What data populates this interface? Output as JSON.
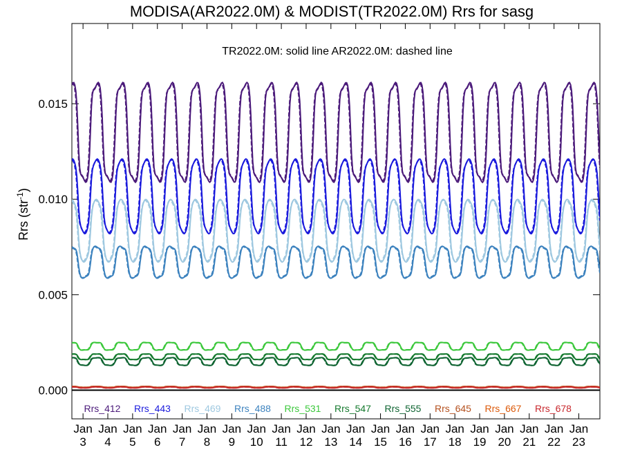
{
  "chart_data": {
    "type": "line",
    "title": "MODISA(AR2022.0M) & MODIST(TR2022.0M)  Rrs for sasg",
    "subtitle": "TR2022.0M: solid line   AR2022.0M: dashed line",
    "ylabel": "Rrs (str",
    "ylabel_sup": "-1",
    "ylabel_close": ")",
    "ylim": [
      -0.0015,
      0.0192
    ],
    "yticks": [
      0.0,
      0.005,
      0.01,
      0.015
    ],
    "ytick_labels": [
      "0.000",
      "0.005",
      "0.010",
      "0.015"
    ],
    "x_range_days": [
      2.55,
      23.85
    ],
    "xtick_labels": [
      {
        "day": 3,
        "month": "Jan",
        "num": "3"
      },
      {
        "day": 4,
        "month": "Jan",
        "num": "4"
      },
      {
        "day": 5,
        "month": "Jan",
        "num": "5"
      },
      {
        "day": 6,
        "month": "Jan",
        "num": "6"
      },
      {
        "day": 7,
        "month": "Jan",
        "num": "7"
      },
      {
        "day": 8,
        "month": "Jan",
        "num": "8"
      },
      {
        "day": 9,
        "month": "Jan",
        "num": "9"
      },
      {
        "day": 10,
        "month": "Jan",
        "num": "10"
      },
      {
        "day": 11,
        "month": "Jan",
        "num": "11"
      },
      {
        "day": 12,
        "month": "Jan",
        "num": "12"
      },
      {
        "day": 13,
        "month": "Jan",
        "num": "13"
      },
      {
        "day": 14,
        "month": "Jan",
        "num": "14"
      },
      {
        "day": 15,
        "month": "Jan",
        "num": "15"
      },
      {
        "day": 16,
        "month": "Jan",
        "num": "16"
      },
      {
        "day": 17,
        "month": "Jan",
        "num": "17"
      },
      {
        "day": 18,
        "month": "Jan",
        "num": "18"
      },
      {
        "day": 19,
        "month": "Jan",
        "num": "19"
      },
      {
        "day": 20,
        "month": "Jan",
        "num": "20"
      },
      {
        "day": 21,
        "month": "Jan",
        "num": "21"
      },
      {
        "day": 22,
        "month": "Jan",
        "num": "22"
      },
      {
        "day": 23,
        "month": "Jan",
        "num": "23"
      }
    ],
    "zero_line": 0.0,
    "legend_placement": "bottom inside plot",
    "series": [
      {
        "name": "Rrs_412",
        "color": "#4B1A7A",
        "high": 0.016,
        "low": 0.011
      },
      {
        "name": "Rrs_443",
        "color": "#1A1ADC",
        "high": 0.012,
        "low": 0.0083
      },
      {
        "name": "Rrs_469",
        "color": "#9EC8E0",
        "high": 0.0099,
        "low": 0.0068
      },
      {
        "name": "Rrs_488",
        "color": "#3C82BE",
        "high": 0.0075,
        "low": 0.0059
      },
      {
        "name": "Rrs_531",
        "color": "#3CC83C",
        "high": 0.0025,
        "low": 0.0021
      },
      {
        "name": "Rrs_547",
        "color": "#157A2E",
        "high": 0.0019,
        "low": 0.0016
      },
      {
        "name": "Rrs_555",
        "color": "#0F6432",
        "high": 0.0017,
        "low": 0.0013
      },
      {
        "name": "Rrs_645",
        "color": "#B4501E",
        "high": 0.0002,
        "low": 0.00015
      },
      {
        "name": "Rrs_667",
        "color": "#DC5A0A",
        "high": 0.00018,
        "low": 0.00013
      },
      {
        "name": "Rrs_678",
        "color": "#C8282D",
        "high": 0.00017,
        "low": 0.00012
      }
    ]
  }
}
